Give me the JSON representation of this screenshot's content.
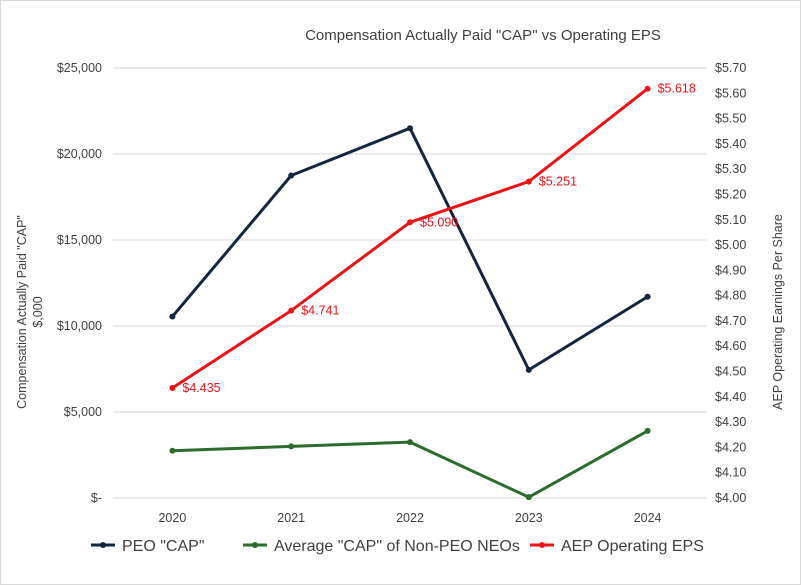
{
  "chart_data": {
    "type": "line",
    "title": "Compensation Actually Paid \"CAP\" vs Operating EPS",
    "categories": [
      "2020",
      "2021",
      "2022",
      "2023",
      "2024"
    ],
    "y_left": {
      "label": "Compensation Actually Paid \"CAP\"",
      "label_line2": "$,000",
      "range": [
        0,
        25000
      ],
      "ticks": [
        0,
        5000,
        10000,
        15000,
        20000,
        25000
      ],
      "tick_labels": [
        "$-",
        "$5,000",
        "$10,000",
        "$15,000",
        "$20,000",
        "$25,000"
      ]
    },
    "y_right": {
      "label": "AEP Operating Earnings Per Share",
      "range": [
        4.0,
        5.7
      ],
      "ticks": [
        4.0,
        4.1,
        4.2,
        4.3,
        4.4,
        4.5,
        4.6,
        4.7,
        4.8,
        4.9,
        5.0,
        5.1,
        5.2,
        5.3,
        5.4,
        5.5,
        5.6,
        5.7
      ],
      "tick_labels": [
        "$4.00",
        "$4.10",
        "$4.20",
        "$4.30",
        "$4.40",
        "$4.50",
        "$4.60",
        "$4.70",
        "$4.80",
        "$4.90",
        "$5.00",
        "$5.10",
        "$5.20",
        "$5.30",
        "$5.40",
        "$5.50",
        "$5.60",
        "$5.70"
      ]
    },
    "series": [
      {
        "name": "PEO \"CAP\"",
        "axis": "left",
        "color": "#14253e",
        "values": [
          10550,
          18750,
          21500,
          7450,
          11700
        ]
      },
      {
        "name": "Average \"CAP\" of Non-PEO NEOs",
        "axis": "left",
        "color": "#2e6b2f",
        "values": [
          2750,
          3000,
          3250,
          50,
          3900
        ]
      },
      {
        "name": "AEP Operating EPS",
        "axis": "right",
        "color": "#e8141a",
        "values": [
          4.435,
          4.741,
          5.09,
          5.251,
          5.618
        ],
        "data_labels": [
          "$4.435",
          "$4.741",
          "$5.090",
          "$5.251",
          "$5.618"
        ]
      }
    ],
    "grid": true,
    "legend_position": "bottom"
  }
}
